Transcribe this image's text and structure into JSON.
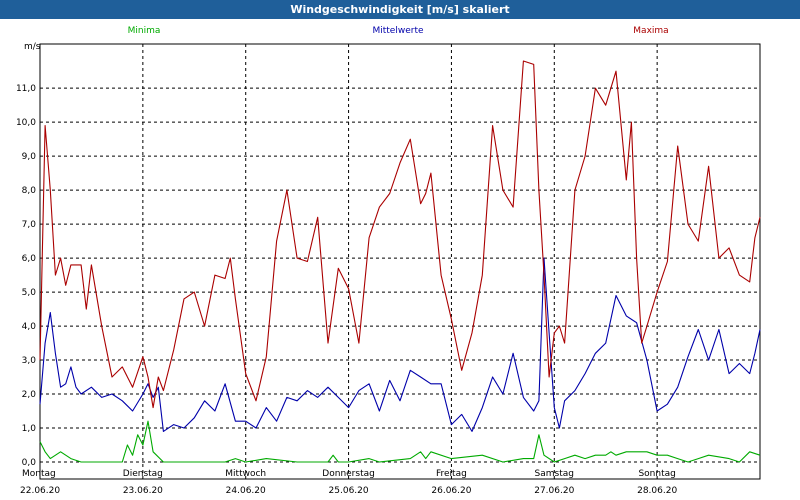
{
  "window": {
    "title": "Windgeschwindigkeit [m/s] skaliert"
  },
  "colors": {
    "title_bar": "#1f5f9a",
    "min": "#00aa00",
    "mean": "#0000aa",
    "max": "#aa0000",
    "grid": "#000000"
  },
  "chart_data": {
    "type": "line",
    "title": "Windgeschwindigkeit [m/s] skaliert",
    "ylabel": "m/s",
    "ylim": [
      -0.5,
      12.3
    ],
    "yticks": [
      "0,0",
      "1,0",
      "2,0",
      "3,0",
      "4,0",
      "5,0",
      "6,0",
      "7,0",
      "8,0",
      "9,0",
      "10,0",
      "11,0"
    ],
    "ytick_values": [
      0,
      1,
      2,
      3,
      4,
      5,
      6,
      7,
      8,
      9,
      10,
      11
    ],
    "xlim": [
      0,
      7
    ],
    "days": [
      {
        "weekday": "Montag",
        "date": "22.06.20"
      },
      {
        "weekday": "Dienstag",
        "date": "23.06.20"
      },
      {
        "weekday": "Mittwoch",
        "date": "24.06.20"
      },
      {
        "weekday": "Donnerstag",
        "date": "25.06.20"
      },
      {
        "weekday": "Freitag",
        "date": "26.06.20"
      },
      {
        "weekday": "Samstag",
        "date": "27.06.20"
      },
      {
        "weekday": "Sonntag",
        "date": "28.06.20"
      }
    ],
    "series": [
      {
        "name": "Minima",
        "color": "#00aa00",
        "x": [
          0,
          0.05,
          0.1,
          0.2,
          0.3,
          0.4,
          0.5,
          0.6,
          0.7,
          0.8,
          0.85,
          0.9,
          0.95,
          1.0,
          1.05,
          1.1,
          1.2,
          1.5,
          1.8,
          1.9,
          2.0,
          2.2,
          2.5,
          2.8,
          2.85,
          2.9,
          3.0,
          3.2,
          3.3,
          3.6,
          3.7,
          3.75,
          3.8,
          4.0,
          4.3,
          4.5,
          4.7,
          4.8,
          4.85,
          4.9,
          5.0,
          5.1,
          5.2,
          5.3,
          5.4,
          5.5,
          5.55,
          5.6,
          5.7,
          5.9,
          6.0,
          6.1,
          6.2,
          6.3,
          6.4,
          6.5,
          6.7,
          6.8,
          6.9,
          7.0
        ],
        "values": [
          0.6,
          0.3,
          0.1,
          0.3,
          0.1,
          0,
          0,
          0,
          0,
          0,
          0.5,
          0.2,
          0.8,
          0.5,
          1.2,
          0.3,
          0,
          0,
          0,
          0.1,
          0,
          0.1,
          0,
          0,
          0.2,
          0,
          0,
          0.1,
          0,
          0.1,
          0.3,
          0.1,
          0.3,
          0.1,
          0.2,
          0,
          0.1,
          0.1,
          0.8,
          0.2,
          0,
          0.1,
          0.2,
          0.1,
          0.2,
          0.2,
          0.3,
          0.2,
          0.3,
          0.3,
          0.2,
          0.2,
          0.1,
          0,
          0.1,
          0.2,
          0.1,
          0,
          0.3,
          0.2
        ]
      },
      {
        "name": "Mittelwerte",
        "color": "#0000aa",
        "x": [
          0,
          0.05,
          0.1,
          0.15,
          0.2,
          0.25,
          0.3,
          0.35,
          0.4,
          0.5,
          0.6,
          0.7,
          0.8,
          0.9,
          1.0,
          1.05,
          1.1,
          1.15,
          1.2,
          1.3,
          1.4,
          1.5,
          1.6,
          1.7,
          1.8,
          1.9,
          2.0,
          2.1,
          2.2,
          2.3,
          2.4,
          2.5,
          2.6,
          2.7,
          2.8,
          2.9,
          3.0,
          3.1,
          3.2,
          3.3,
          3.4,
          3.5,
          3.6,
          3.7,
          3.8,
          3.9,
          4.0,
          4.1,
          4.2,
          4.3,
          4.4,
          4.5,
          4.6,
          4.7,
          4.8,
          4.85,
          4.9,
          4.95,
          5.0,
          5.05,
          5.1,
          5.2,
          5.3,
          5.4,
          5.5,
          5.6,
          5.7,
          5.8,
          5.9,
          6.0,
          6.1,
          6.2,
          6.3,
          6.4,
          6.5,
          6.6,
          6.7,
          6.8,
          6.9,
          6.95,
          7.0
        ],
        "values": [
          1.7,
          3.5,
          4.4,
          3.2,
          2.2,
          2.3,
          2.8,
          2.2,
          2.0,
          2.2,
          1.9,
          2.0,
          1.8,
          1.5,
          2.0,
          2.3,
          1.9,
          2.2,
          0.9,
          1.1,
          1.0,
          1.3,
          1.8,
          1.5,
          2.3,
          1.2,
          1.2,
          1.0,
          1.6,
          1.2,
          1.9,
          1.8,
          2.1,
          1.9,
          2.2,
          1.9,
          1.6,
          2.1,
          2.3,
          1.5,
          2.4,
          1.8,
          2.7,
          2.5,
          2.3,
          2.3,
          1.1,
          1.4,
          0.9,
          1.6,
          2.5,
          2.0,
          3.2,
          1.9,
          1.5,
          1.8,
          6.0,
          3.8,
          1.6,
          1.0,
          1.8,
          2.1,
          2.6,
          3.2,
          3.5,
          4.9,
          4.3,
          4.1,
          3.0,
          1.5,
          1.7,
          2.2,
          3.1,
          3.9,
          3.0,
          3.9,
          2.6,
          2.9,
          2.6,
          3.2,
          3.9
        ]
      },
      {
        "name": "Maxima",
        "color": "#aa0000",
        "x": [
          0,
          0.05,
          0.1,
          0.15,
          0.2,
          0.25,
          0.3,
          0.4,
          0.45,
          0.5,
          0.6,
          0.7,
          0.8,
          0.9,
          1.0,
          1.05,
          1.1,
          1.15,
          1.2,
          1.3,
          1.4,
          1.5,
          1.6,
          1.7,
          1.8,
          1.85,
          1.9,
          2.0,
          2.1,
          2.2,
          2.3,
          2.4,
          2.5,
          2.6,
          2.7,
          2.8,
          2.9,
          3.0,
          3.1,
          3.2,
          3.3,
          3.4,
          3.5,
          3.6,
          3.7,
          3.75,
          3.8,
          3.9,
          4.0,
          4.1,
          4.2,
          4.3,
          4.4,
          4.5,
          4.6,
          4.7,
          4.8,
          4.85,
          4.9,
          4.95,
          5.0,
          5.05,
          5.1,
          5.2,
          5.3,
          5.4,
          5.5,
          5.6,
          5.7,
          5.75,
          5.8,
          5.85,
          5.9,
          6.0,
          6.1,
          6.2,
          6.3,
          6.4,
          6.5,
          6.6,
          6.7,
          6.8,
          6.9,
          6.95,
          7.0
        ],
        "values": [
          3.0,
          9.9,
          8.0,
          5.5,
          6.0,
          5.2,
          5.8,
          5.8,
          4.5,
          5.8,
          4.0,
          2.5,
          2.8,
          2.2,
          3.1,
          2.5,
          1.6,
          2.5,
          2.1,
          3.3,
          4.8,
          5.0,
          4.0,
          5.5,
          5.4,
          6.0,
          4.8,
          2.6,
          1.8,
          3.1,
          6.5,
          8.0,
          6.0,
          5.9,
          7.2,
          3.5,
          5.7,
          5.1,
          3.5,
          6.6,
          7.5,
          7.9,
          8.8,
          9.5,
          7.6,
          7.9,
          8.5,
          5.5,
          4.2,
          2.7,
          3.8,
          5.5,
          9.9,
          8.0,
          7.5,
          11.8,
          11.7,
          8.0,
          5.5,
          2.5,
          3.8,
          4.0,
          3.5,
          8.0,
          9.0,
          11.0,
          10.5,
          11.5,
          8.3,
          10.0,
          6.0,
          3.5,
          4.0,
          5.0,
          5.9,
          9.3,
          7.0,
          6.5,
          8.7,
          6.0,
          6.3,
          5.5,
          5.3,
          6.6,
          7.2
        ]
      }
    ]
  }
}
